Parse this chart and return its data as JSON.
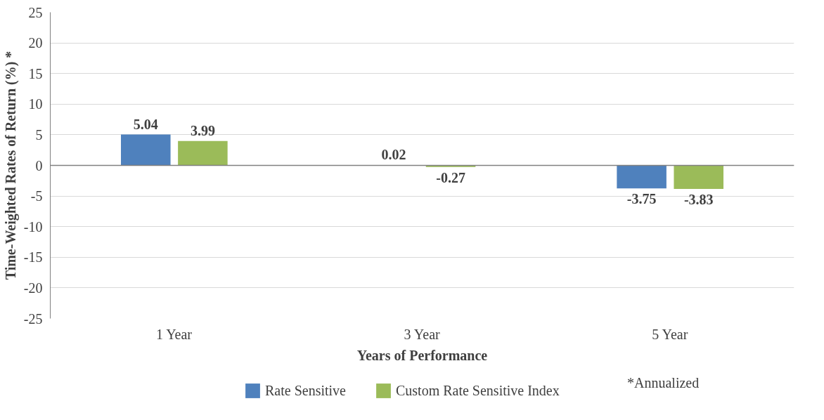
{
  "chart_data": {
    "type": "bar",
    "xlabel": "Years of Performance",
    "ylabel": "Time-Weighted Rates of Return (%) *",
    "categories": [
      "1 Year",
      "3 Year",
      "5 Year"
    ],
    "series": [
      {
        "name": "Rate Sensitive",
        "color": "#4f81bd",
        "values": [
          5.04,
          0.02,
          -3.75
        ]
      },
      {
        "name": "Custom Rate Sensitive Index",
        "color": "#9bbb59",
        "values": [
          3.99,
          -0.27,
          -3.83
        ]
      }
    ],
    "ylim": [
      -25,
      25
    ],
    "yticks": [
      -25,
      -20,
      -15,
      -10,
      -5,
      0,
      5,
      10,
      15,
      20,
      25
    ],
    "grid": "y",
    "legend": "bottom",
    "data_labels": true,
    "annotations": [
      "*Annualized"
    ]
  }
}
